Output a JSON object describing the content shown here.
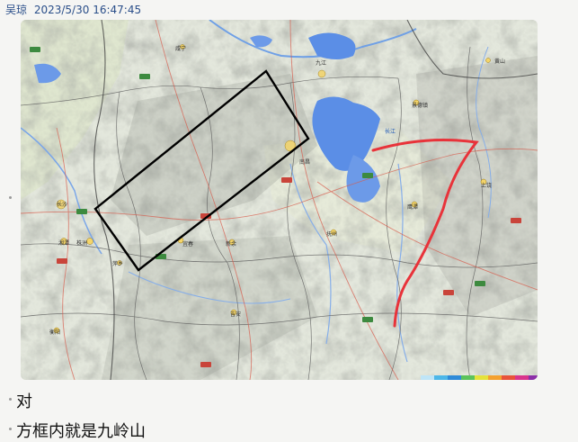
{
  "message_header": {
    "sender": "吴琼",
    "timestamp": "2023/5/30 16:47:45"
  },
  "image_message": {
    "map": {
      "city_labels": [
        "咸宁",
        "九江",
        "南昌",
        "长沙",
        "湘潭",
        "株洲",
        "宜春",
        "新余",
        "抚州",
        "上饶",
        "吉安",
        "鹰潭",
        "景德镇",
        "衡阳",
        "萍乡",
        "黄山",
        "长江"
      ],
      "annotations": {
        "rectangle": "black box outlining the Jiuling mountains",
        "curve": "red hand-drawn line"
      },
      "icons": [
        "highway-shield-icon"
      ]
    }
  },
  "messages": [
    {
      "text": "对"
    },
    {
      "text": "方框内就是九岭山"
    }
  ],
  "colors": {
    "header_text": "#2b4f8a",
    "box_stroke": "#000000",
    "red_line": "#e8333a",
    "lake_blue": "#5b8ee6"
  }
}
